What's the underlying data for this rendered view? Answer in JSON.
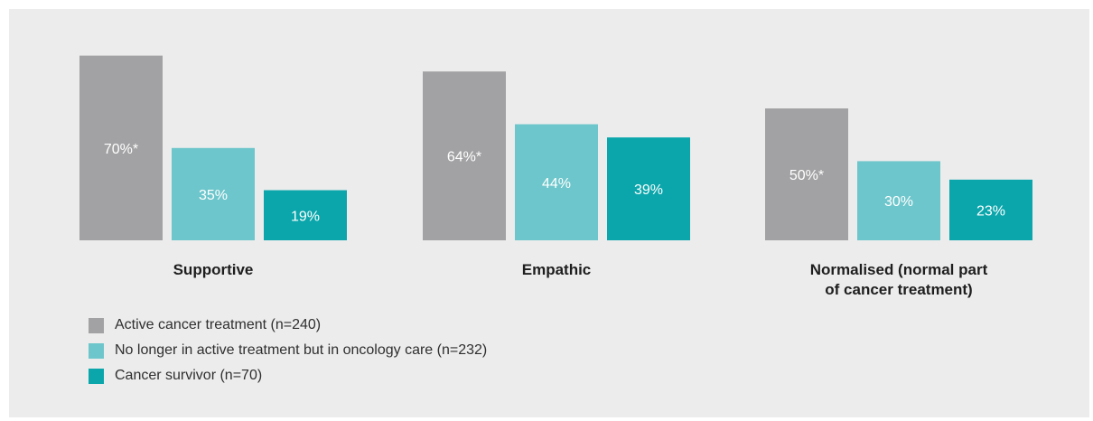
{
  "chart_data": {
    "type": "bar",
    "categories": [
      [
        "Supportive"
      ],
      [
        "Empathic"
      ],
      [
        "Normalised (normal part",
        "of cancer treatment)"
      ]
    ],
    "series": [
      {
        "name": "Active cancer treatment (n=240)",
        "values": [
          70,
          64,
          50
        ],
        "labels": [
          "70%*",
          "64%*",
          "50%*"
        ],
        "color": "#a2a2a4"
      },
      {
        "name": "No longer in active treatment but in oncology care (n=232)",
        "values": [
          35,
          44,
          30
        ],
        "labels": [
          "35%",
          "44%",
          "30%"
        ],
        "color": "#6dc6cb"
      },
      {
        "name": "Cancer survivor (n=70)",
        "values": [
          19,
          39,
          23
        ],
        "labels": [
          "19%",
          "39%",
          "23%"
        ],
        "color": "#0aa6ab"
      }
    ],
    "ylim": [
      0,
      100
    ],
    "title": "",
    "xlabel": "",
    "ylabel": "",
    "legend_position": "bottom-left",
    "grid": false
  }
}
